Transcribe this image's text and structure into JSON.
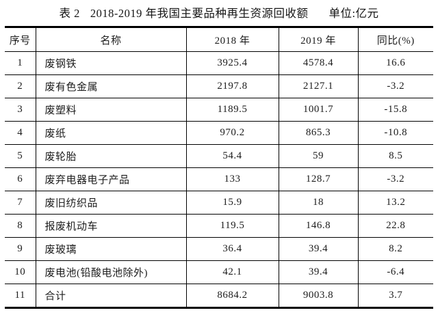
{
  "page": {
    "background_color": "#ffffff",
    "text_color": "#1c1c1c",
    "rule_color": "#000000"
  },
  "title": {
    "table_label": "表 2",
    "table_title": "2018-2019 年我国主要品种再生资源回收额",
    "unit_label": "单位:亿元"
  },
  "table": {
    "columns": [
      "序号",
      "名称",
      "2018 年",
      "2019 年",
      "同比(%)"
    ],
    "rows": [
      [
        "1",
        "废钢铁",
        "3925.4",
        "4578.4",
        "16.6"
      ],
      [
        "2",
        "废有色金属",
        "2197.8",
        "2127.1",
        "-3.2"
      ],
      [
        "3",
        "废塑料",
        "1189.5",
        "1001.7",
        "-15.8"
      ],
      [
        "4",
        "废纸",
        "970.2",
        "865.3",
        "-10.8"
      ],
      [
        "5",
        "废轮胎",
        "54.4",
        "59",
        "8.5"
      ],
      [
        "6",
        "废弃电器电子产品",
        "133",
        "128.7",
        "-3.2"
      ],
      [
        "7",
        "废旧纺织品",
        "15.9",
        "18",
        "13.2"
      ],
      [
        "8",
        "报废机动车",
        "119.5",
        "146.8",
        "22.8"
      ],
      [
        "9",
        "废玻璃",
        "36.4",
        "39.4",
        "8.2"
      ],
      [
        "10",
        "废电池(铅酸电池除外)",
        "42.1",
        "39.4",
        "-6.4"
      ],
      [
        "11",
        "合计",
        "8684.2",
        "9003.8",
        "3.7"
      ]
    ]
  }
}
